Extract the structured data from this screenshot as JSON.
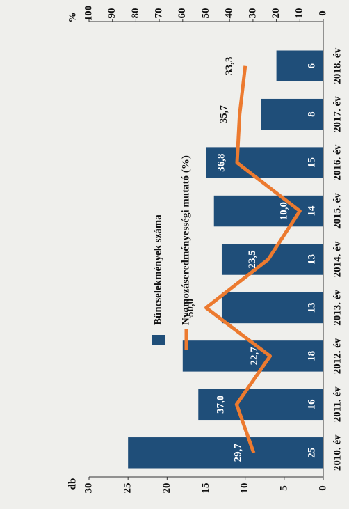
{
  "chart_data": {
    "type": "bar",
    "categories": [
      "2010. év",
      "2011. év",
      "2012. év",
      "2013. év",
      "2014. év",
      "2015. év",
      "2016. év",
      "2017. év",
      "2018. év"
    ],
    "series": [
      {
        "name": "Bűncselekmények száma",
        "color": "#1f4e79",
        "values": [
          25,
          16,
          18,
          13,
          13,
          14,
          15,
          8,
          6
        ]
      },
      {
        "name": "Nyomozáseredményességi mutató (%)",
        "color": "#ec7a2f",
        "type": "line",
        "axis": "y2",
        "values": [
          29.7,
          37.0,
          22.7,
          50.0,
          23.5,
          10.0,
          36.8,
          35.7,
          33.3
        ],
        "value_labels": [
          "29,7",
          "37,0",
          "22,7",
          "50,0",
          "23,5",
          "10,0",
          "36,8",
          "35,7",
          "33,3"
        ]
      }
    ],
    "y_label": "db",
    "y2_label": "%",
    "ylim": [
      0,
      30
    ],
    "yticks": [
      0,
      5,
      10,
      15,
      20,
      25,
      30
    ],
    "y2lim": [
      0,
      100
    ],
    "y2ticks": [
      0,
      10,
      20,
      30,
      40,
      50,
      60,
      70,
      80,
      90,
      100
    ]
  }
}
